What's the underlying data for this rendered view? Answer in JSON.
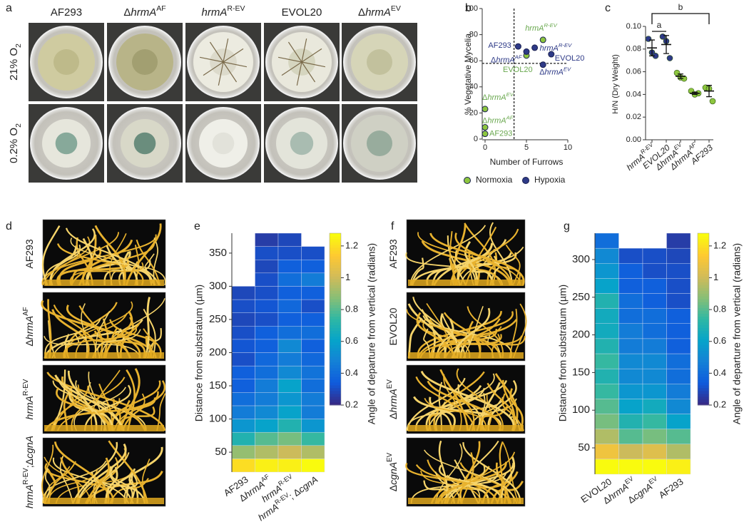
{
  "panel_labels": [
    "a",
    "b",
    "c",
    "d",
    "e",
    "f",
    "g"
  ],
  "panel_a": {
    "columns": [
      [
        {
          "text": "AF293"
        }
      ],
      [
        {
          "text": "Δ"
        },
        {
          "text": "hrmA",
          "style": "italic"
        },
        {
          "text": "AF",
          "style": "sup"
        }
      ],
      [
        {
          "text": "hrmA",
          "style": "italic"
        },
        {
          "text": "R-EV",
          "style": "sup"
        }
      ],
      [
        {
          "text": "EVOL20"
        }
      ],
      [
        {
          "text": "Δ"
        },
        {
          "text": "hrmA",
          "style": "italic"
        },
        {
          "text": "EV",
          "style": "sup"
        }
      ]
    ],
    "rows": [
      [
        {
          "text": "21% O"
        },
        {
          "text": "2",
          "style": "sub"
        }
      ],
      [
        {
          "text": "0.2% O"
        },
        {
          "text": "2",
          "style": "sub"
        }
      ]
    ]
  },
  "panel_d": {
    "rows": [
      [
        {
          "text": "AF293"
        }
      ],
      [
        {
          "text": "Δ"
        },
        {
          "text": "hrmA",
          "style": "italic"
        },
        {
          "text": "AF",
          "style": "sup"
        }
      ],
      [
        {
          "text": "hrmA",
          "style": "italic"
        },
        {
          "text": "R-EV",
          "style": "sup"
        }
      ],
      [
        {
          "text": "hrmA",
          "style": "italic"
        },
        {
          "text": "R-EV",
          "style": "sup"
        },
        {
          "text": ";Δ"
        },
        {
          "text": "cgnA",
          "style": "italic"
        }
      ]
    ]
  },
  "panel_f": {
    "rows": [
      [
        {
          "text": "AF293"
        }
      ],
      [
        {
          "text": "EVOL20"
        }
      ],
      [
        {
          "text": "Δ"
        },
        {
          "text": "hrmA",
          "style": "italic"
        },
        {
          "text": "EV",
          "style": "sup"
        }
      ],
      [
        {
          "text": "Δ"
        },
        {
          "text": "cgnA",
          "style": "italic"
        },
        {
          "text": "EV",
          "style": "sup"
        }
      ]
    ]
  },
  "chart_data": [
    {
      "type": "scatter",
      "xlabel": "Number of Furrows",
      "ylabel": "% Vegetative Mycelia",
      "xlim": [
        0,
        10
      ],
      "xticks": [
        0,
        5,
        10
      ],
      "ylim": [
        0,
        100
      ],
      "yticks": [
        0,
        20,
        40,
        60,
        80,
        100
      ],
      "reference_lines": {
        "x": 3.5,
        "y": 58
      },
      "legend": "bottom",
      "series": [
        {
          "name": "Normoxia",
          "color": "#8dc63f",
          "label_color": "#6aa84f",
          "x": [
            0,
            0,
            0,
            7,
            5
          ],
          "y": [
            23,
            9,
            4,
            76,
            64
          ],
          "labels": [
            [
              {
                "text": "Δ"
              },
              {
                "text": "hrmA",
                "style": "italic"
              },
              {
                "text": "EV",
                "style": "italic sup"
              }
            ],
            [
              {
                "text": "Δ"
              },
              {
                "text": "hrmA",
                "style": "italic"
              },
              {
                "text": "AF",
                "style": "italic sup"
              }
            ],
            [
              {
                "text": "AF293"
              }
            ],
            [
              {
                "text": "hrmA",
                "style": "italic"
              },
              {
                "text": "R-EV",
                "style": "italic sup"
              }
            ],
            [
              {
                "text": "EVOL20"
              }
            ]
          ]
        },
        {
          "name": "Hypoxia",
          "color": "#2e3a87",
          "label_color": "#2e3a87",
          "x": [
            4,
            5,
            6,
            8,
            7
          ],
          "y": [
            71,
            67,
            70,
            65,
            57
          ],
          "labels": [
            [
              {
                "text": "AF293"
              }
            ],
            [
              {
                "text": "Δ"
              },
              {
                "text": "hrmA",
                "style": "italic"
              },
              {
                "text": "AF",
                "style": "italic sup"
              }
            ],
            [
              {
                "text": "hrmA",
                "style": "italic"
              },
              {
                "text": "R-EV",
                "style": "italic sup"
              }
            ],
            [
              {
                "text": "EVOL20"
              }
            ],
            [
              {
                "text": "Δ"
              },
              {
                "text": "hrmA",
                "style": "italic"
              },
              {
                "text": "EV",
                "style": "italic sup"
              }
            ]
          ]
        }
      ]
    },
    {
      "type": "dot",
      "ylabel": "H/N (Dry Weight)",
      "ylim": [
        0,
        0.1
      ],
      "yticks": [
        {
          "value": 0,
          "label": "0.00"
        },
        {
          "value": 0.02,
          "label": "0.02"
        },
        {
          "value": 0.04,
          "label": "0.04"
        },
        {
          "value": 0.06,
          "label": "0.06"
        },
        {
          "value": 0.08,
          "label": "0.08"
        },
        {
          "value": 0.1,
          "label": "0.10"
        }
      ],
      "categories": [
        [
          {
            "text": "hrmA",
            "style": "italic"
          },
          {
            "text": "R-EV",
            "style": "italic sup"
          }
        ],
        [
          {
            "text": "EVOL20",
            "style": "italic"
          }
        ],
        [
          {
            "text": "ΔhrmA",
            "style": "italic"
          },
          {
            "text": "EV",
            "style": "italic sup"
          }
        ],
        [
          {
            "text": "ΔhrmA",
            "style": "italic"
          },
          {
            "text": "AF",
            "style": "italic sup"
          }
        ],
        [
          {
            "text": "AF293",
            "style": "italic"
          }
        ]
      ],
      "points": [
        [
          0.089,
          0.077,
          0.074
        ],
        [
          0.091,
          0.087,
          0.072
        ],
        [
          0.059,
          0.055,
          0.054
        ],
        [
          0.043,
          0.04,
          0.041
        ],
        [
          0.046,
          0.045,
          0.034
        ]
      ],
      "values": [
        0.081,
        0.084,
        0.056,
        0.041,
        0.043
      ],
      "errors": [
        0.007,
        0.008,
        0.002,
        0.001,
        0.005
      ],
      "colors": [
        "#2e3a87",
        "#2e3a87",
        "#8dc63f",
        "#8dc63f",
        "#8dc63f"
      ],
      "brackets": [
        {
          "label": "a",
          "from": 0,
          "to": 1
        },
        {
          "label": "b",
          "from": 0,
          "to": 4
        }
      ]
    },
    {
      "type": "heatmap",
      "ylabel": "Distance from substratum (µm)",
      "colorbar_label": "Angle of departure from vertical (radians)",
      "categories": [
        [
          {
            "text": "AF293"
          }
        ],
        [
          {
            "text": "Δ"
          },
          {
            "text": "hrmA",
            "style": "italic"
          },
          {
            "text": "AF",
            "style": "sup"
          }
        ],
        [
          {
            "text": "hrmA",
            "style": "italic"
          },
          {
            "text": "R-EV",
            "style": "sup"
          }
        ],
        [
          {
            "text": "hrmA",
            "style": "italic"
          },
          {
            "text": "R-EV",
            "style": "sup"
          },
          {
            "text": "; Δ"
          },
          {
            "text": "cgnA",
            "style": "italic"
          }
        ]
      ],
      "ylim": [
        20,
        380
      ],
      "yticks": [
        50,
        100,
        150,
        200,
        250,
        300,
        350
      ],
      "y_bins": [
        20,
        40,
        60,
        80,
        100,
        120,
        140,
        160,
        180,
        200,
        220,
        240,
        260,
        280,
        300,
        320,
        340,
        360,
        380
      ],
      "values": [
        [
          1.2,
          0.9,
          0.7,
          0.55,
          0.45,
          0.4,
          0.35,
          0.35,
          0.3,
          0.32,
          0.3,
          0.28,
          0.3,
          0.28,
          null,
          null,
          null,
          null
        ],
        [
          1.25,
          0.95,
          0.8,
          0.6,
          0.5,
          0.45,
          0.45,
          0.4,
          0.38,
          0.35,
          0.35,
          0.3,
          0.32,
          0.3,
          0.3,
          0.28,
          0.3,
          0.25
        ],
        [
          1.25,
          1.0,
          0.85,
          0.7,
          0.6,
          0.55,
          0.6,
          0.5,
          0.45,
          0.5,
          0.4,
          0.35,
          0.38,
          0.35,
          0.4,
          0.35,
          0.3,
          0.28
        ],
        [
          1.28,
          0.95,
          0.75,
          0.55,
          0.45,
          0.45,
          0.4,
          0.42,
          0.38,
          0.35,
          0.4,
          0.35,
          0.3,
          0.35,
          0.45,
          0.35,
          0.3,
          null
        ]
      ],
      "clim": [
        0.2,
        1.28
      ],
      "cticks": [
        0.2,
        0.4,
        0.6,
        0.8,
        1,
        1.2
      ],
      "colormap": [
        "#352a87",
        "#0f5cdd",
        "#1481d6",
        "#06a4ca",
        "#2eb7a4",
        "#87bf77",
        "#d1bb59",
        "#fec832",
        "#f9fb0e"
      ]
    },
    {
      "type": "heatmap",
      "ylabel": "Distance from substratum (µm)",
      "colorbar_label": "Angle of departure from vertical (radians)",
      "categories": [
        [
          {
            "text": "EVOL20"
          }
        ],
        [
          {
            "text": "Δ"
          },
          {
            "text": "hrmA",
            "style": "italic"
          },
          {
            "text": "EV",
            "style": "sup"
          }
        ],
        [
          {
            "text": "Δ"
          },
          {
            "text": "cgnA",
            "style": "italic"
          },
          {
            "text": "EV",
            "style": "sup"
          }
        ],
        [
          {
            "text": "AF293"
          }
        ]
      ],
      "ylim": [
        15,
        335
      ],
      "yticks": [
        50,
        100,
        150,
        200,
        250,
        300
      ],
      "y_bins": [
        15,
        35,
        55,
        75,
        95,
        115,
        135,
        155,
        175,
        195,
        215,
        235,
        255,
        275,
        295,
        315,
        335
      ],
      "values": [
        [
          1.28,
          1.1,
          0.95,
          0.85,
          0.8,
          0.75,
          0.7,
          0.75,
          0.7,
          0.65,
          0.65,
          0.7,
          0.6,
          0.55,
          0.5,
          0.4
        ],
        [
          1.28,
          1.0,
          0.8,
          0.7,
          0.6,
          0.55,
          0.5,
          0.5,
          0.45,
          0.45,
          0.4,
          0.4,
          0.35,
          0.35,
          0.3,
          null
        ],
        [
          1.28,
          1.05,
          0.85,
          0.75,
          0.65,
          0.55,
          0.5,
          0.5,
          0.45,
          0.4,
          0.4,
          0.35,
          0.35,
          0.3,
          0.3,
          null
        ],
        [
          1.25,
          0.95,
          0.8,
          0.6,
          0.5,
          0.45,
          0.4,
          0.4,
          0.35,
          0.35,
          0.35,
          0.3,
          0.3,
          0.3,
          0.28,
          0.25
        ]
      ],
      "clim": [
        0.2,
        1.28
      ],
      "cticks": [
        0.2,
        0.4,
        0.6,
        0.8,
        1,
        1.2
      ],
      "colormap": [
        "#352a87",
        "#0f5cdd",
        "#1481d6",
        "#06a4ca",
        "#2eb7a4",
        "#87bf77",
        "#d1bb59",
        "#fec832",
        "#f9fb0e"
      ]
    }
  ]
}
